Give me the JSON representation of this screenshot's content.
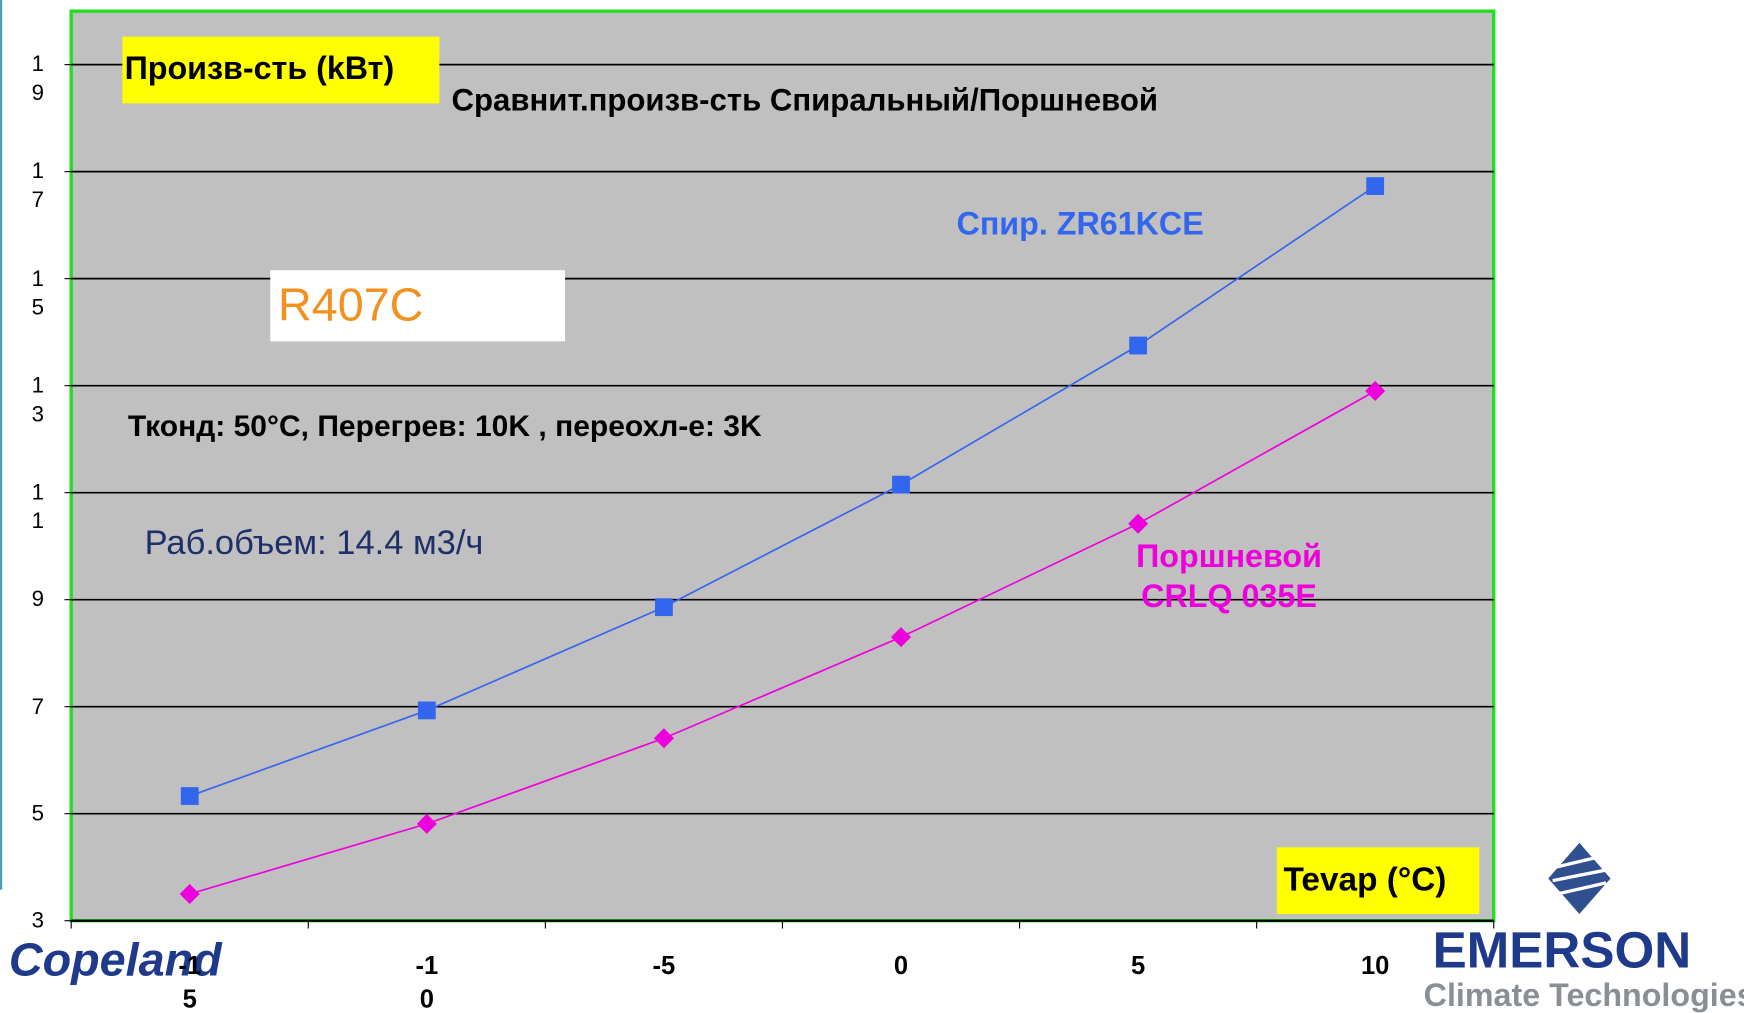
{
  "chart_data": {
    "type": "line",
    "title": "Сравнит.произв-сть Спиральный/Поршневой",
    "y_label": "Произв-сть (kВт)",
    "x_label": "Tevap (°C)",
    "annotations": [
      "Тконд: 50°C, Перегрев: 10K , переохл-е: 3K",
      "Раб.объем: 14.4 м3/ч"
    ],
    "refrigerant": "R407C",
    "categories": [
      "-15",
      "-10",
      "-5",
      "0",
      "5",
      "10"
    ],
    "series": [
      {
        "name": "Спир. ZR61KCE",
        "color": "#3366ee",
        "marker": "square",
        "values": [
          5.33,
          6.93,
          8.86,
          11.15,
          13.75,
          16.73
        ]
      },
      {
        "name": "Поршневой CRLQ 035E",
        "color": "#ee00dd",
        "marker": "diamond",
        "values": [
          3.5,
          4.81,
          6.41,
          8.3,
          10.42,
          12.9
        ]
      }
    ],
    "ylim": [
      3,
      20
    ],
    "yticks": [
      3,
      5,
      7,
      9,
      11,
      13,
      15,
      17,
      19
    ],
    "grid": true
  },
  "logos": {
    "left": "Copeland",
    "right": "EMERSON",
    "right_sub": "Climate Technologies"
  }
}
